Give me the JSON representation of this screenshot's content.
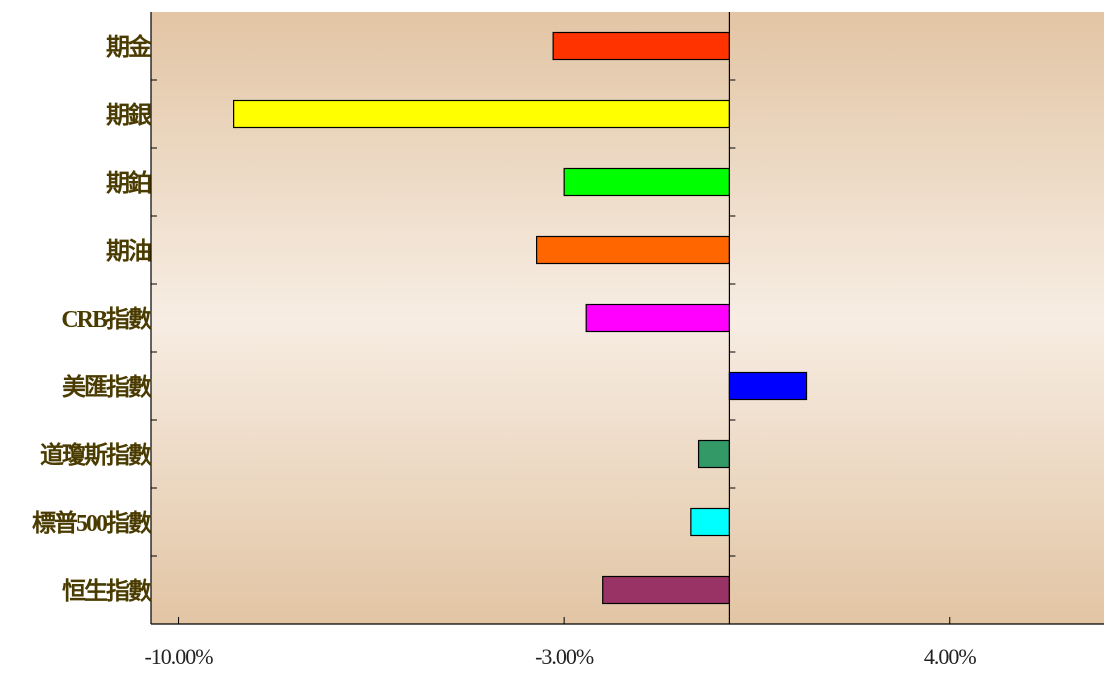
{
  "chart_data": {
    "type": "bar",
    "orientation": "horizontal",
    "categories": [
      "期金",
      "期銀",
      "期鉑",
      "期油",
      "CRB指數",
      "美匯指數",
      "道瓊斯指數",
      "標普500指數",
      "恒生指數"
    ],
    "values": [
      -3.2,
      -9.0,
      -3.0,
      -3.5,
      -2.6,
      1.4,
      -0.56,
      -0.7,
      -2.3
    ],
    "bar_colors": [
      "#ff3300",
      "#ffff00",
      "#00ff00",
      "#ff6600",
      "#ff00ff",
      "#0000ff",
      "#339966",
      "#00ffff",
      "#993366"
    ],
    "xlim": [
      -10.5,
      6.8
    ],
    "xticks": [
      {
        "value": -10,
        "label": "-10.00%"
      },
      {
        "value": -3,
        "label": "-3.00%"
      },
      {
        "value": 4,
        "label": "4.00%"
      }
    ],
    "zero_line": 0,
    "title": "",
    "xlabel": "",
    "ylabel": "",
    "grid": false,
    "legend": "none",
    "colors": {
      "plot_background_edge": "#e2c5a4",
      "plot_background_center": "#f7ede3",
      "category_label": "#4a3b00",
      "tick_label": "#222222",
      "axis": "#000000"
    }
  }
}
